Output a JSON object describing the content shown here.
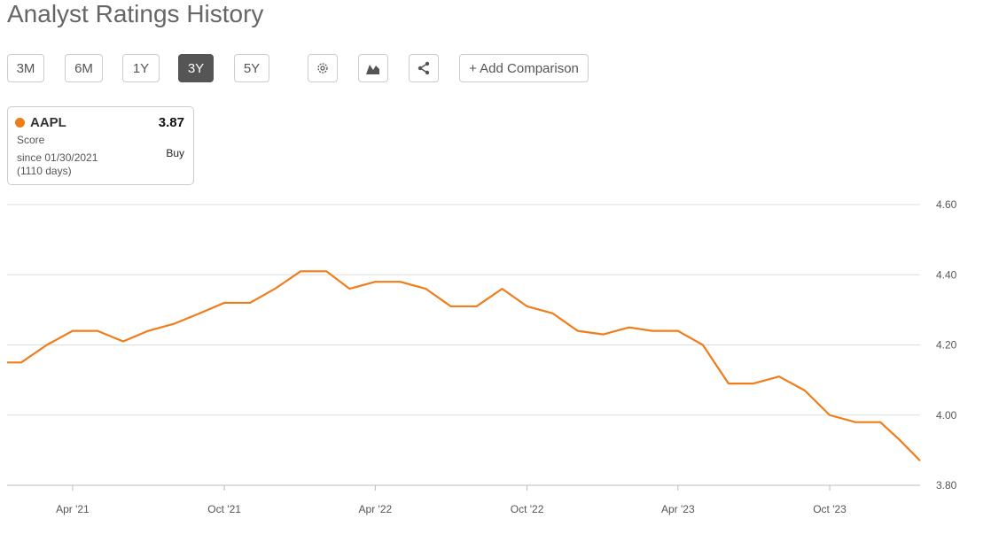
{
  "header": {
    "title": "Analyst Ratings History"
  },
  "toolbar": {
    "ranges": [
      "3M",
      "6M",
      "1Y",
      "3Y",
      "5Y"
    ],
    "active_range": "3Y",
    "icons": [
      "gear-icon",
      "chart-type-icon",
      "share-icon"
    ],
    "add_comparison": "+ Add Comparison"
  },
  "legend_card": {
    "symbol": "AAPL",
    "value": "3.87",
    "label": "Score",
    "since": "since 01/30/2021",
    "days": "(1110 days)",
    "rating": "Buy",
    "color": "#f07c1a"
  },
  "chart_data": {
    "type": "line",
    "series": [
      {
        "name": "AAPL",
        "color": "#f07c1a",
        "points": [
          [
            "2021-01-12",
            4.15
          ],
          [
            "2021-01-29",
            4.15
          ],
          [
            "2021-03-01",
            4.2
          ],
          [
            "2021-04-01",
            4.24
          ],
          [
            "2021-05-01",
            4.24
          ],
          [
            "2021-06-01",
            4.21
          ],
          [
            "2021-07-01",
            4.24
          ],
          [
            "2021-08-01",
            4.26
          ],
          [
            "2021-09-01",
            4.29
          ],
          [
            "2021-10-01",
            4.32
          ],
          [
            "2021-11-01",
            4.32
          ],
          [
            "2021-12-01",
            4.36
          ],
          [
            "2022-01-01",
            4.41
          ],
          [
            "2022-02-01",
            4.41
          ],
          [
            "2022-03-01",
            4.36
          ],
          [
            "2022-04-01",
            4.38
          ],
          [
            "2022-05-01",
            4.38
          ],
          [
            "2022-06-01",
            4.36
          ],
          [
            "2022-07-01",
            4.31
          ],
          [
            "2022-08-01",
            4.31
          ],
          [
            "2022-09-01",
            4.36
          ],
          [
            "2022-10-01",
            4.31
          ],
          [
            "2022-11-01",
            4.29
          ],
          [
            "2022-12-01",
            4.24
          ],
          [
            "2023-01-01",
            4.23
          ],
          [
            "2023-02-01",
            4.25
          ],
          [
            "2023-03-01",
            4.24
          ],
          [
            "2023-04-01",
            4.24
          ],
          [
            "2023-05-01",
            4.2
          ],
          [
            "2023-06-01",
            4.09
          ],
          [
            "2023-07-01",
            4.09
          ],
          [
            "2023-08-01",
            4.11
          ],
          [
            "2023-09-01",
            4.07
          ],
          [
            "2023-10-01",
            4.0
          ],
          [
            "2023-11-01",
            3.98
          ],
          [
            "2023-12-01",
            3.98
          ],
          [
            "2023-12-24",
            3.93
          ],
          [
            "2024-01-18",
            3.87
          ]
        ]
      }
    ],
    "xlim": [
      "2021-01-12",
      "2024-01-18"
    ],
    "ylim": [
      3.8,
      4.6
    ],
    "yticks": [
      "3.80",
      "4.00",
      "4.20",
      "4.40",
      "4.60"
    ],
    "xticks": [
      {
        "date": "2021-04-01",
        "label": "Apr '21"
      },
      {
        "date": "2021-10-01",
        "label": "Oct '21"
      },
      {
        "date": "2022-04-01",
        "label": "Apr '22"
      },
      {
        "date": "2022-10-01",
        "label": "Oct '22"
      },
      {
        "date": "2023-04-01",
        "label": "Apr '23"
      },
      {
        "date": "2023-10-01",
        "label": "Oct '23"
      }
    ],
    "grid": true,
    "y_axis_position": "right"
  }
}
